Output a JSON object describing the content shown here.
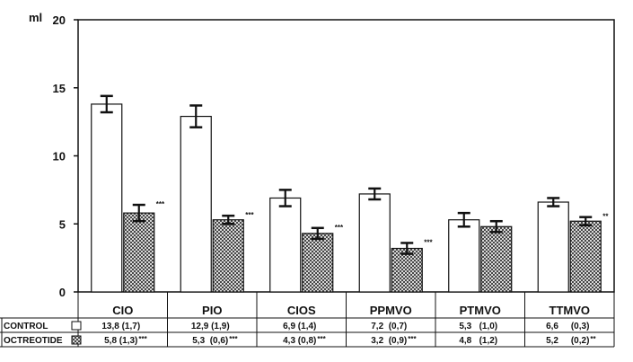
{
  "chart_data": {
    "type": "bar",
    "y_unit": "ml",
    "ylim": [
      0,
      20
    ],
    "y_ticks": [
      "0",
      "5",
      "10",
      "15",
      "20"
    ],
    "grid": false,
    "categories": [
      "CIO",
      "PIO",
      "CIOS",
      "PPMVO",
      "PTMVO",
      "TTMVO"
    ],
    "series": [
      {
        "name": "CONTROL",
        "fill": "white",
        "values": [
          13.8,
          12.9,
          6.9,
          7.2,
          5.3,
          6.6
        ],
        "errors": [
          0.6,
          0.8,
          0.6,
          0.4,
          0.5,
          0.3
        ],
        "significance": [
          "",
          "",
          "",
          "",
          "",
          ""
        ]
      },
      {
        "name": "OCTREOTIDE",
        "fill": "crosshatch",
        "values": [
          5.8,
          5.3,
          4.3,
          3.2,
          4.8,
          5.2
        ],
        "errors": [
          0.6,
          0.3,
          0.4,
          0.4,
          0.4,
          0.3
        ],
        "significance": [
          "***",
          "***",
          "***",
          "***",
          "",
          "**"
        ]
      }
    ],
    "table": {
      "rows": [
        {
          "label": "CONTROL",
          "cells": [
            "13,8 (1,7)",
            "12,9 (1,9)",
            "6,9 (1,4)",
            "7,2  (0,7)",
            "5,3   (1,0)",
            "6,6     (0,3)"
          ],
          "marks": [
            "",
            "",
            "",
            "",
            "",
            ""
          ]
        },
        {
          "label": "OCTREOTIDE",
          "cells": [
            "5,8 (1,3)",
            "5,3  (0,6)",
            "4,3 (0,8)",
            "3,2  (0,9)",
            "4,8   (1,2)",
            "5,2     (0,2)"
          ],
          "marks": [
            "***",
            "***",
            "***",
            "***",
            "",
            "**"
          ]
        }
      ]
    }
  }
}
